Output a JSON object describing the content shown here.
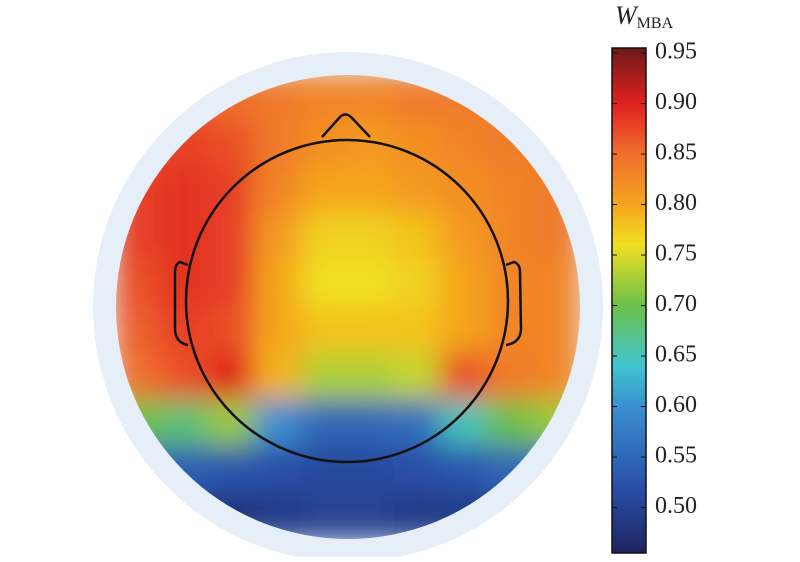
{
  "chart_data": {
    "type": "topomap",
    "colorbar_label": {
      "main": "W",
      "sub": "MBA"
    },
    "z": [
      [
        0.86,
        0.86,
        0.85,
        0.84,
        0.83,
        0.83,
        0.84,
        0.84,
        0.84,
        0.84
      ],
      [
        0.87,
        0.88,
        0.87,
        0.84,
        0.82,
        0.81,
        0.82,
        0.83,
        0.84,
        0.84
      ],
      [
        0.88,
        0.89,
        0.88,
        0.83,
        0.8,
        0.8,
        0.81,
        0.82,
        0.83,
        0.84
      ],
      [
        0.88,
        0.89,
        0.88,
        0.81,
        0.77,
        0.77,
        0.78,
        0.81,
        0.83,
        0.84
      ],
      [
        0.87,
        0.89,
        0.88,
        0.8,
        0.76,
        0.76,
        0.77,
        0.8,
        0.83,
        0.83
      ],
      [
        0.86,
        0.88,
        0.87,
        0.8,
        0.78,
        0.78,
        0.78,
        0.8,
        0.83,
        0.83
      ],
      [
        0.85,
        0.87,
        0.9,
        0.79,
        0.73,
        0.73,
        0.74,
        0.87,
        0.84,
        0.83
      ],
      [
        0.7,
        0.68,
        0.72,
        0.6,
        0.55,
        0.55,
        0.56,
        0.65,
        0.7,
        0.72
      ],
      [
        0.55,
        0.54,
        0.53,
        0.52,
        0.51,
        0.51,
        0.52,
        0.53,
        0.55,
        0.56
      ],
      [
        0.5,
        0.49,
        0.48,
        0.49,
        0.5,
        0.5,
        0.49,
        0.49,
        0.5,
        0.5
      ]
    ],
    "colormap": [
      {
        "value": 0.455,
        "color": "#1c2460"
      },
      {
        "value": 0.52,
        "color": "#2a4fa8"
      },
      {
        "value": 0.6,
        "color": "#3a8fd0"
      },
      {
        "value": 0.64,
        "color": "#40c4d0"
      },
      {
        "value": 0.7,
        "color": "#6cc04a"
      },
      {
        "value": 0.76,
        "color": "#f0e020"
      },
      {
        "value": 0.8,
        "color": "#f5a51e"
      },
      {
        "value": 0.85,
        "color": "#ef6f2e"
      },
      {
        "value": 0.9,
        "color": "#e0201f"
      },
      {
        "value": 0.955,
        "color": "#6e1a1a"
      }
    ],
    "ylim": [
      0.455,
      0.955
    ],
    "yticks": [
      {
        "value": 0.5,
        "label": "0.50"
      },
      0.55,
      {
        "value": 0.6,
        "label": "0.60"
      },
      0.65,
      {
        "value": 0.7,
        "label": "0.70"
      },
      0.75,
      {
        "value": 0.8,
        "label": "0.80"
      },
      0.85,
      {
        "value": 0.9,
        "label": "0.90"
      },
      0.95
    ]
  }
}
